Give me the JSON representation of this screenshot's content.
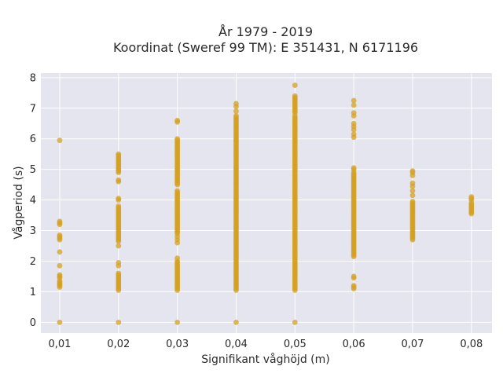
{
  "chart_data": {
    "type": "scatter",
    "title_line1": "År 1979 - 2019",
    "title_line2": "Koordinat (Sweref 99 TM): E 351431, N 6171196",
    "xlabel": "Signifikant våghöjd (m)",
    "ylabel": "Vågperiod (s)",
    "xlim": [
      0.0068,
      0.0835
    ],
    "ylim": [
      -0.35,
      8.15
    ],
    "x_ticks": [
      0.01,
      0.02,
      0.03,
      0.04,
      0.05,
      0.06,
      0.07,
      0.08
    ],
    "x_tick_labels": [
      "0,01",
      "0,02",
      "0,03",
      "0,04",
      "0,05",
      "0,06",
      "0,07",
      "0,08"
    ],
    "y_ticks": [
      0,
      1,
      2,
      3,
      4,
      5,
      6,
      7,
      8
    ],
    "y_tick_labels": [
      "0",
      "1",
      "2",
      "3",
      "4",
      "5",
      "6",
      "7",
      "8"
    ],
    "grid": true,
    "legend": "none",
    "colors": {
      "marker": "#d4a020",
      "plot_bg": "#e5e5ef",
      "grid": "#ffffff",
      "text": "#2a2a2a"
    },
    "series": [
      {
        "x": 0.01,
        "ranges": [],
        "points": [
          0,
          1.15,
          1.2,
          1.25,
          1.3,
          1.35,
          1.45,
          1.5,
          1.55,
          1.85,
          2.3,
          2.7,
          2.75,
          2.8,
          2.85,
          3.2,
          3.25,
          3.3,
          5.95
        ]
      },
      {
        "x": 0.02,
        "ranges": [
          [
            1.05,
            1.6
          ],
          [
            2.65,
            3.8
          ],
          [
            4.9,
            5.5
          ]
        ],
        "points": [
          0,
          1.85,
          1.95,
          2.5,
          4.0,
          4.05,
          4.6,
          4.65
        ]
      },
      {
        "x": 0.03,
        "ranges": [
          [
            1.05,
            2.0
          ],
          [
            2.9,
            4.3
          ],
          [
            4.5,
            6.0
          ]
        ],
        "points": [
          0,
          2.1,
          2.6,
          2.7,
          2.8,
          6.55,
          6.6
        ]
      },
      {
        "x": 0.04,
        "ranges": [
          [
            1.05,
            6.75
          ]
        ],
        "points": [
          0,
          6.9,
          7.05,
          7.15
        ]
      },
      {
        "x": 0.05,
        "ranges": [
          [
            1.05,
            6.75
          ],
          [
            6.85,
            7.4
          ]
        ],
        "points": [
          0,
          7.75
        ]
      },
      {
        "x": 0.06,
        "ranges": [
          [
            2.15,
            4.9
          ]
        ],
        "points": [
          1.1,
          1.15,
          1.2,
          1.45,
          1.5,
          5.0,
          5.05,
          6.05,
          6.15,
          6.3,
          6.4,
          6.5,
          6.75,
          6.85,
          7.1,
          7.25
        ]
      },
      {
        "x": 0.07,
        "ranges": [
          [
            2.7,
            3.95
          ]
        ],
        "points": [
          4.15,
          4.3,
          4.45,
          4.55,
          4.8,
          4.9,
          4.95
        ]
      },
      {
        "x": 0.08,
        "ranges": [
          [
            3.55,
            3.9
          ]
        ],
        "points": [
          4.0,
          4.05,
          4.1
        ]
      }
    ]
  }
}
